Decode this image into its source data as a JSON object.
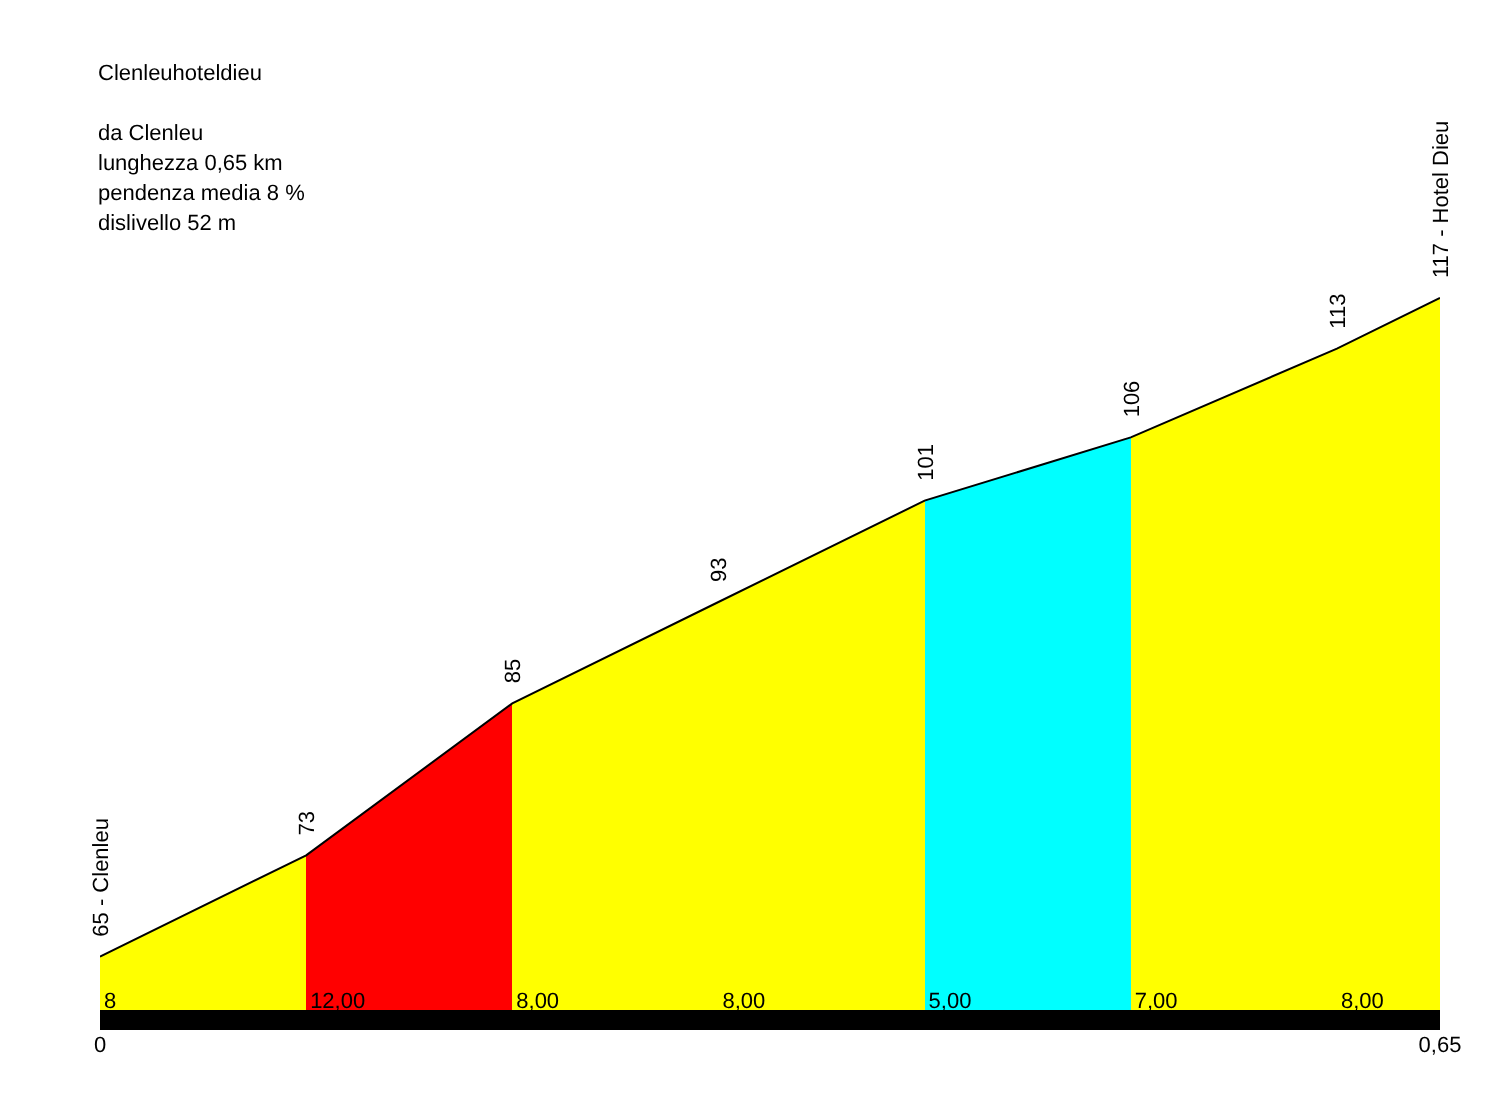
{
  "chart_data": {
    "type": "area",
    "title": "Clenleuhoteldieu",
    "subtitle": "da Clenleu",
    "x": [
      0,
      0.1,
      0.2,
      0.3,
      0.4,
      0.5,
      0.6,
      0.65
    ],
    "series": [
      {
        "values": [
          65,
          73,
          85,
          93,
          101,
          106,
          113,
          117
        ],
        "colors": [
          "#ffff00",
          "#ffff00",
          "#ff0000",
          "#ffff00",
          "#ffff00",
          "#00ffff",
          "#ffff00",
          "#ffff00"
        ],
        "value_labels": [
          "65 - Clenleu",
          "73",
          "85",
          "93",
          "101",
          "106",
          "113",
          "117 - Hotel Dieu"
        ]
      }
    ],
    "xlim": [
      0,
      0.65
    ],
    "xticks": [
      0,
      {
        "value": 0.65,
        "label": "0,65"
      }
    ],
    "tick_labels": "x",
    "annotations": [
      "lunghezza 0,65 km",
      "pendenza media 8 %",
      "dislivello 52 m",
      "8",
      "12,00",
      "8,00",
      "8,00",
      "5,00",
      "7,00",
      "8,00"
    ]
  }
}
